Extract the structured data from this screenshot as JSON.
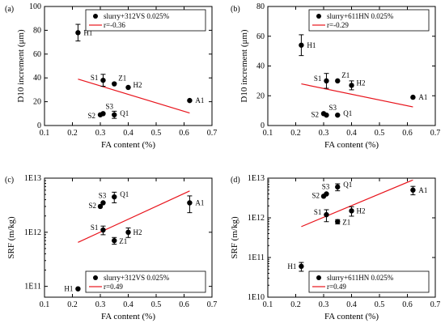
{
  "colors": {
    "marker": "#000000",
    "fit_line": "#e8141c"
  },
  "chart_data": [
    {
      "panel": "(a)",
      "type": "scatter",
      "xlabel": "FA content (%)",
      "ylabel": "D10 increment (μm)",
      "xlim": [
        0.1,
        0.7
      ],
      "ylim": [
        0,
        100
      ],
      "scale_y": "linear",
      "xticks": [
        "0.1",
        "0.2",
        "0.3",
        "0.4",
        "0.5",
        "0.6",
        "0.7"
      ],
      "yticks": [
        "0",
        "20",
        "40",
        "60",
        "80",
        "100"
      ],
      "legend": {
        "placement": "top-right",
        "series_name": "slurry+312VS 0.025%",
        "fit_label": "r=-0.36"
      },
      "points": [
        {
          "label": "H1",
          "x": 0.22,
          "y": 78,
          "err": 7
        },
        {
          "label": "S1",
          "x": 0.31,
          "y": 38,
          "err": 5
        },
        {
          "label": "Z1",
          "x": 0.35,
          "y": 35,
          "err": 0
        },
        {
          "label": "H2",
          "x": 0.4,
          "y": 32,
          "err": 0
        },
        {
          "label": "A1",
          "x": 0.62,
          "y": 21,
          "err": 0
        },
        {
          "label": "S3",
          "x": 0.31,
          "y": 10,
          "err": 0
        },
        {
          "label": "S2",
          "x": 0.3,
          "y": 9,
          "err": 0
        },
        {
          "label": "Q1",
          "x": 0.35,
          "y": 9,
          "err": 3
        }
      ],
      "fit_line": {
        "x1": 0.22,
        "y1": 39,
        "x2": 0.62,
        "y2": 10.5
      }
    },
    {
      "panel": "(b)",
      "type": "scatter",
      "xlabel": "FA content (%)",
      "ylabel": "D10 increment (μm)",
      "xlim": [
        0.1,
        0.7
      ],
      "ylim": [
        0,
        80
      ],
      "scale_y": "linear",
      "xticks": [
        "0.1",
        "0.2",
        "0.3",
        "0.4",
        "0.5",
        "0.6",
        "0.7"
      ],
      "yticks": [
        "0",
        "20",
        "40",
        "60",
        "80"
      ],
      "legend": {
        "placement": "top-right",
        "series_name": "slurry+611HN 0.025%",
        "fit_label": "r=-0.29"
      },
      "points": [
        {
          "label": "H1",
          "x": 0.22,
          "y": 54,
          "err": 7
        },
        {
          "label": "S1",
          "x": 0.31,
          "y": 30,
          "err": 5
        },
        {
          "label": "Z1",
          "x": 0.35,
          "y": 30,
          "err": 0
        },
        {
          "label": "H2",
          "x": 0.4,
          "y": 27,
          "err": 3
        },
        {
          "label": "A1",
          "x": 0.62,
          "y": 19,
          "err": 0
        },
        {
          "label": "S2",
          "x": 0.3,
          "y": 8,
          "err": 0
        },
        {
          "label": "S3",
          "x": 0.31,
          "y": 7,
          "err": 0
        },
        {
          "label": "Q1",
          "x": 0.35,
          "y": 7,
          "err": 0
        }
      ],
      "fit_line": {
        "x1": 0.22,
        "y1": 28,
        "x2": 0.62,
        "y2": 12.5
      }
    },
    {
      "panel": "(c)",
      "type": "scatter",
      "xlabel": "FA content (%)",
      "ylabel": "SRF (m/kg)",
      "xlim": [
        0.1,
        0.7
      ],
      "ylim_exp": [
        10.8,
        13
      ],
      "scale_y": "log",
      "xticks": [
        "0.1",
        "0.2",
        "0.3",
        "0.4",
        "0.5",
        "0.6",
        "0.7"
      ],
      "yticks": [
        {
          "exp": 11,
          "label": "1E11"
        },
        {
          "exp": 12,
          "label": "1E12"
        },
        {
          "exp": 13,
          "label": "1E13"
        }
      ],
      "legend": {
        "placement": "bottom-right",
        "series_name": "slurry+312VS 0.025%",
        "fit_label": "r=0.49"
      },
      "points": [
        {
          "label": "H1",
          "x": 0.22,
          "y": 90000000000.0,
          "err": 0
        },
        {
          "label": "S1",
          "x": 0.31,
          "y": 1100000000000.0,
          "err": 200000000000.0
        },
        {
          "label": "Z1",
          "x": 0.35,
          "y": 700000000000.0,
          "err": 100000000000.0
        },
        {
          "label": "H2",
          "x": 0.4,
          "y": 1000000000000.0,
          "err": 200000000000.0
        },
        {
          "label": "A1",
          "x": 0.62,
          "y": 3500000000000.0,
          "err": 1200000000000.0
        },
        {
          "label": "S2",
          "x": 0.3,
          "y": 3000000000000.0,
          "err": 0
        },
        {
          "label": "S3",
          "x": 0.31,
          "y": 3500000000000.0,
          "err": 0
        },
        {
          "label": "Q1",
          "x": 0.35,
          "y": 4500000000000.0,
          "err": 1000000000000.0
        }
      ],
      "fit_line": {
        "x1": 0.22,
        "y1": 650000000000.0,
        "x2": 0.62,
        "y2": 5800000000000.0
      }
    },
    {
      "panel": "(d)",
      "type": "scatter",
      "xlabel": "FA content (%)",
      "ylabel": "SRF (m/kg)",
      "xlim": [
        0.1,
        0.7
      ],
      "ylim_exp": [
        10,
        13
      ],
      "scale_y": "log",
      "xticks": [
        "0.1",
        "0.2",
        "0.3",
        "0.4",
        "0.5",
        "0.6",
        "0.7"
      ],
      "yticks": [
        {
          "exp": 10,
          "label": "1E10"
        },
        {
          "exp": 11,
          "label": "1E11"
        },
        {
          "exp": 12,
          "label": "1E12"
        },
        {
          "exp": 13,
          "label": "1E13"
        }
      ],
      "legend": {
        "placement": "bottom-right",
        "series_name": "slurry+611HN 0.025%",
        "fit_label": "r=0.49"
      },
      "points": [
        {
          "label": "H1",
          "x": 0.22,
          "y": 60000000000.0,
          "err": 15000000000.0
        },
        {
          "label": "S1",
          "x": 0.31,
          "y": 1200000000000.0,
          "err": 400000000000.0
        },
        {
          "label": "Z1",
          "x": 0.35,
          "y": 800000000000.0,
          "err": 100000000000.0
        },
        {
          "label": "H2",
          "x": 0.4,
          "y": 1500000000000.0,
          "err": 400000000000.0
        },
        {
          "label": "A1",
          "x": 0.62,
          "y": 5000000000000.0,
          "err": 1200000000000.0
        },
        {
          "label": "S2",
          "x": 0.3,
          "y": 3500000000000.0,
          "err": 0
        },
        {
          "label": "S3",
          "x": 0.31,
          "y": 4000000000000.0,
          "err": 0
        },
        {
          "label": "Q1",
          "x": 0.35,
          "y": 6000000000000.0,
          "err": 1200000000000.0
        }
      ],
      "fit_line": {
        "x1": 0.22,
        "y1": 600000000000.0,
        "x2": 0.62,
        "y2": 9000000000000.0
      }
    }
  ]
}
